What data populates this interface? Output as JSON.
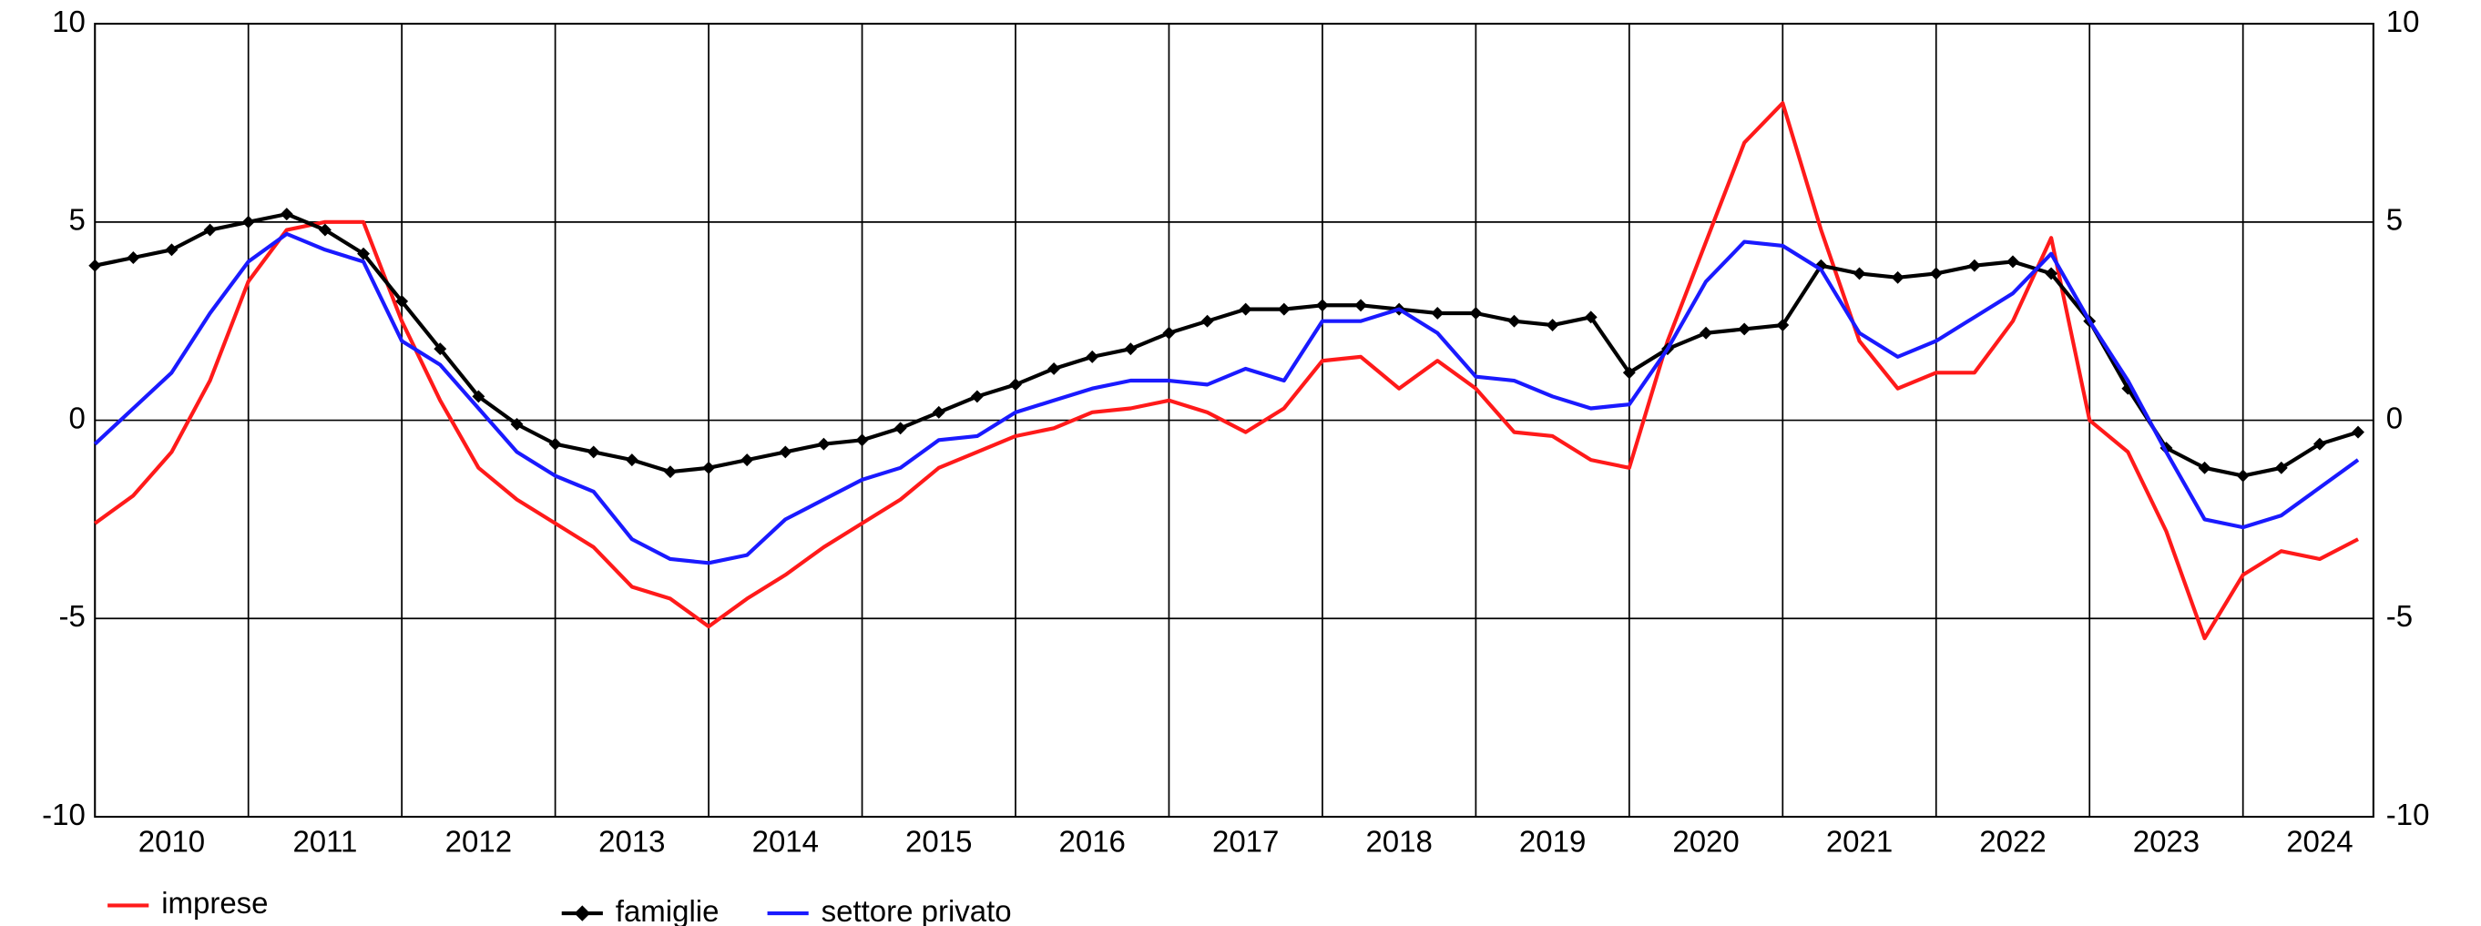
{
  "chart_data": {
    "type": "line",
    "x": [
      2010,
      2010.25,
      2010.5,
      2010.75,
      2011,
      2011.25,
      2011.5,
      2011.75,
      2012,
      2012.25,
      2012.5,
      2012.75,
      2013,
      2013.25,
      2013.5,
      2013.75,
      2014,
      2014.25,
      2014.5,
      2014.75,
      2015,
      2015.25,
      2015.5,
      2015.75,
      2016,
      2016.25,
      2016.5,
      2016.75,
      2017,
      2017.25,
      2017.5,
      2017.75,
      2018,
      2018.25,
      2018.5,
      2018.75,
      2019,
      2019.25,
      2019.5,
      2019.75,
      2020,
      2020.25,
      2020.5,
      2020.75,
      2021,
      2021.25,
      2021.5,
      2021.75,
      2022,
      2022.25,
      2022.5,
      2022.75,
      2023,
      2023.25,
      2023.5,
      2023.75,
      2024,
      2024.25,
      2024.5,
      2024.75
    ],
    "series": [
      {
        "name": "imprese",
        "color": "#ff1a1a",
        "values": [
          -2.6,
          -1.9,
          -0.8,
          1.0,
          3.5,
          4.8,
          5.0,
          5.0,
          2.5,
          0.5,
          -1.2,
          -2.0,
          -2.6,
          -3.2,
          -4.2,
          -4.5,
          -5.2,
          -4.5,
          -3.9,
          -3.2,
          -2.6,
          -2.0,
          -1.2,
          -0.8,
          -0.4,
          -0.2,
          0.2,
          0.3,
          0.5,
          0.2,
          -0.3,
          0.3,
          1.5,
          1.6,
          0.8,
          1.5,
          0.8,
          -0.3,
          -0.4,
          -1.0,
          -1.2,
          2.0,
          4.5,
          7.0,
          8.0,
          4.8,
          2.0,
          0.8,
          1.2,
          1.2,
          2.5,
          4.6,
          0.0,
          -0.8,
          -2.8,
          -5.5,
          -3.9,
          -3.3,
          -3.5,
          -3.0
        ]
      },
      {
        "name": "famiglie",
        "color": "#000000",
        "marker": "diamond",
        "values": [
          3.9,
          4.1,
          4.3,
          4.8,
          5.0,
          5.2,
          4.8,
          4.2,
          3.0,
          1.8,
          0.6,
          -0.1,
          -0.6,
          -0.8,
          -1.0,
          -1.3,
          -1.2,
          -1.0,
          -0.8,
          -0.6,
          -0.5,
          -0.2,
          0.2,
          0.6,
          0.9,
          1.3,
          1.6,
          1.8,
          2.2,
          2.5,
          2.8,
          2.8,
          2.9,
          2.9,
          2.8,
          2.7,
          2.7,
          2.5,
          2.4,
          2.6,
          1.2,
          1.8,
          2.2,
          2.3,
          2.4,
          3.9,
          3.7,
          3.6,
          3.7,
          3.9,
          4.0,
          3.7,
          2.5,
          0.8,
          -0.7,
          -1.2,
          -1.4,
          -1.2,
          -0.6,
          -0.3
        ]
      },
      {
        "name": "settore privato",
        "color": "#1a1aff",
        "values": [
          -0.6,
          0.3,
          1.2,
          2.7,
          4.0,
          4.7,
          4.3,
          4.0,
          2.0,
          1.4,
          0.3,
          -0.8,
          -1.4,
          -1.8,
          -3.0,
          -3.5,
          -3.6,
          -3.4,
          -2.5,
          -2.0,
          -1.5,
          -1.2,
          -0.5,
          -0.4,
          0.2,
          0.5,
          0.8,
          1.0,
          1.0,
          0.9,
          1.3,
          1.0,
          2.5,
          2.5,
          2.8,
          2.2,
          1.1,
          1.0,
          0.6,
          0.3,
          0.4,
          1.8,
          3.5,
          4.5,
          4.4,
          3.8,
          2.2,
          1.6,
          2.0,
          2.6,
          3.2,
          4.2,
          2.5,
          1.0,
          -0.8,
          -2.5,
          -2.7,
          -2.4,
          -1.7,
          -1.0
        ]
      }
    ],
    "xlim": [
      2010,
      2024.85
    ],
    "xticks": [
      {
        "value": 2010.5,
        "label": "2010"
      },
      {
        "value": 2011.5,
        "label": "2011"
      },
      {
        "value": 2012.5,
        "label": "2012"
      },
      {
        "value": 2013.5,
        "label": "2013"
      },
      {
        "value": 2014.5,
        "label": "2014"
      },
      {
        "value": 2015.5,
        "label": "2015"
      },
      {
        "value": 2016.5,
        "label": "2016"
      },
      {
        "value": 2017.5,
        "label": "2017"
      },
      {
        "value": 2018.5,
        "label": "2018"
      },
      {
        "value": 2019.5,
        "label": "2019"
      },
      {
        "value": 2020.5,
        "label": "2020"
      },
      {
        "value": 2021.5,
        "label": "2021"
      },
      {
        "value": 2022.5,
        "label": "2022"
      },
      {
        "value": 2023.5,
        "label": "2023"
      },
      {
        "value": 2024.5,
        "label": "2024"
      }
    ],
    "xgrid": [
      2011,
      2012,
      2013,
      2014,
      2015,
      2016,
      2017,
      2018,
      2019,
      2020,
      2021,
      2022,
      2023,
      2024
    ],
    "ylim": [
      -10,
      10
    ],
    "yticks": [
      -10,
      -5,
      0,
      5,
      10
    ],
    "grid": true,
    "legend": "bottom"
  }
}
